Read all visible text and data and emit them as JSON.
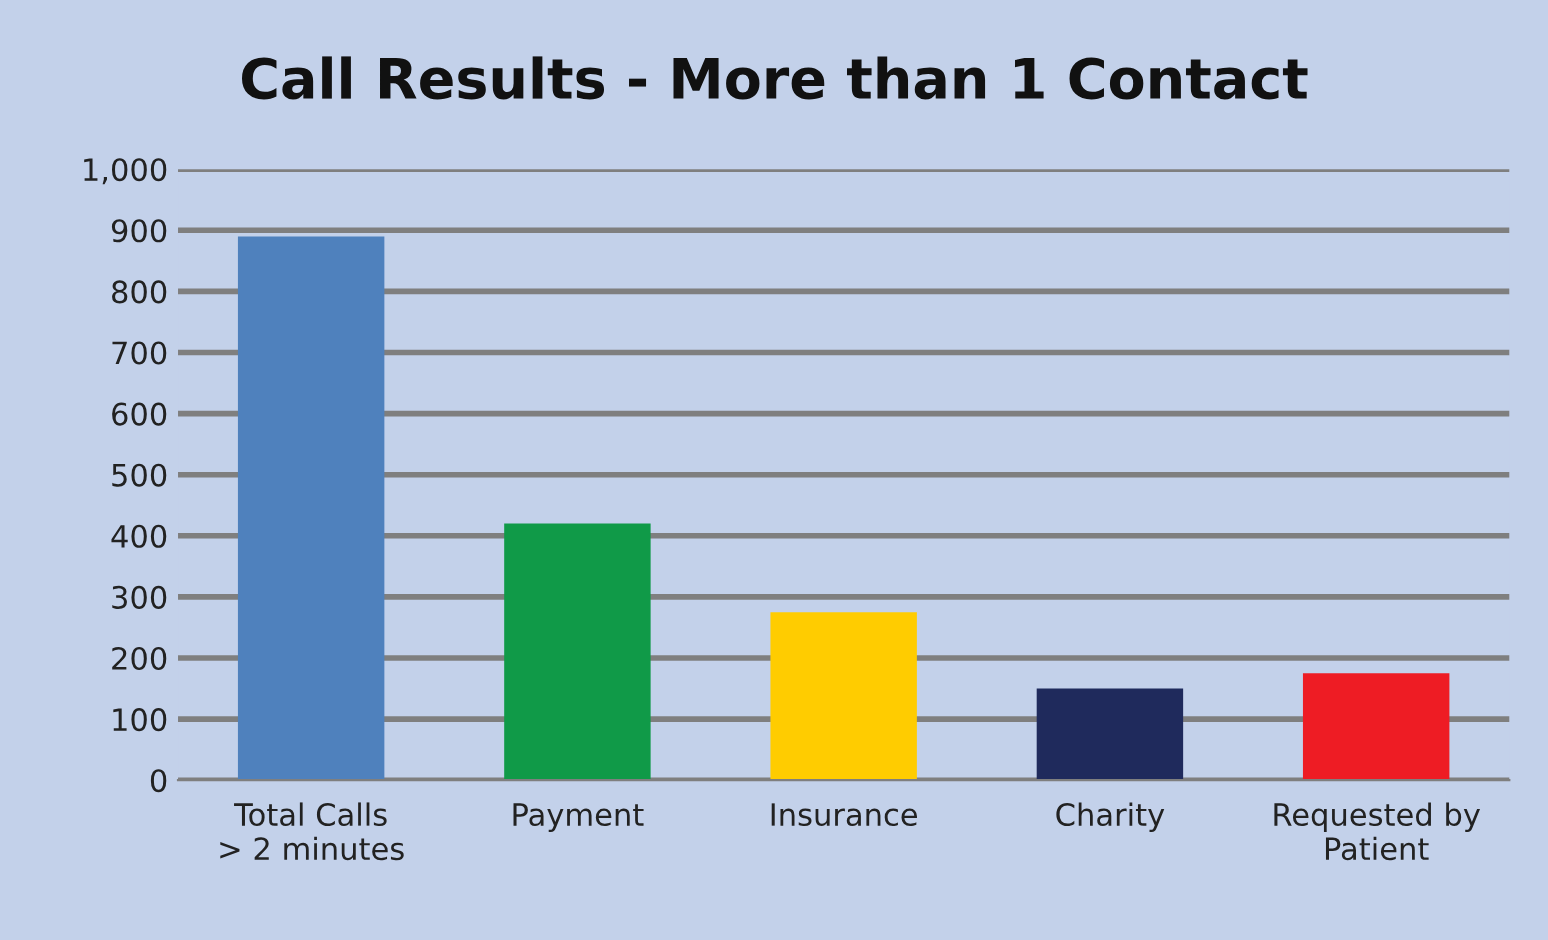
{
  "chart_data": {
    "type": "bar",
    "title": "Call Results - More than 1 Contact",
    "categories": [
      "Total Calls\n> 2 minutes",
      "Payment",
      "Insurance",
      "Charity",
      "Requested by\nPatient"
    ],
    "values": [
      890,
      420,
      275,
      150,
      175
    ],
    "colors": [
      "#4f81bd",
      "#109a48",
      "#ffcc00",
      "#1f2a5c",
      "#ee1c24"
    ],
    "ylim": [
      0,
      1000
    ],
    "yticks": [
      0,
      100,
      200,
      300,
      400,
      500,
      600,
      700,
      800,
      900,
      {
        "value": 1000,
        "label": "1,000"
      }
    ],
    "grid": "y",
    "legend": false
  }
}
